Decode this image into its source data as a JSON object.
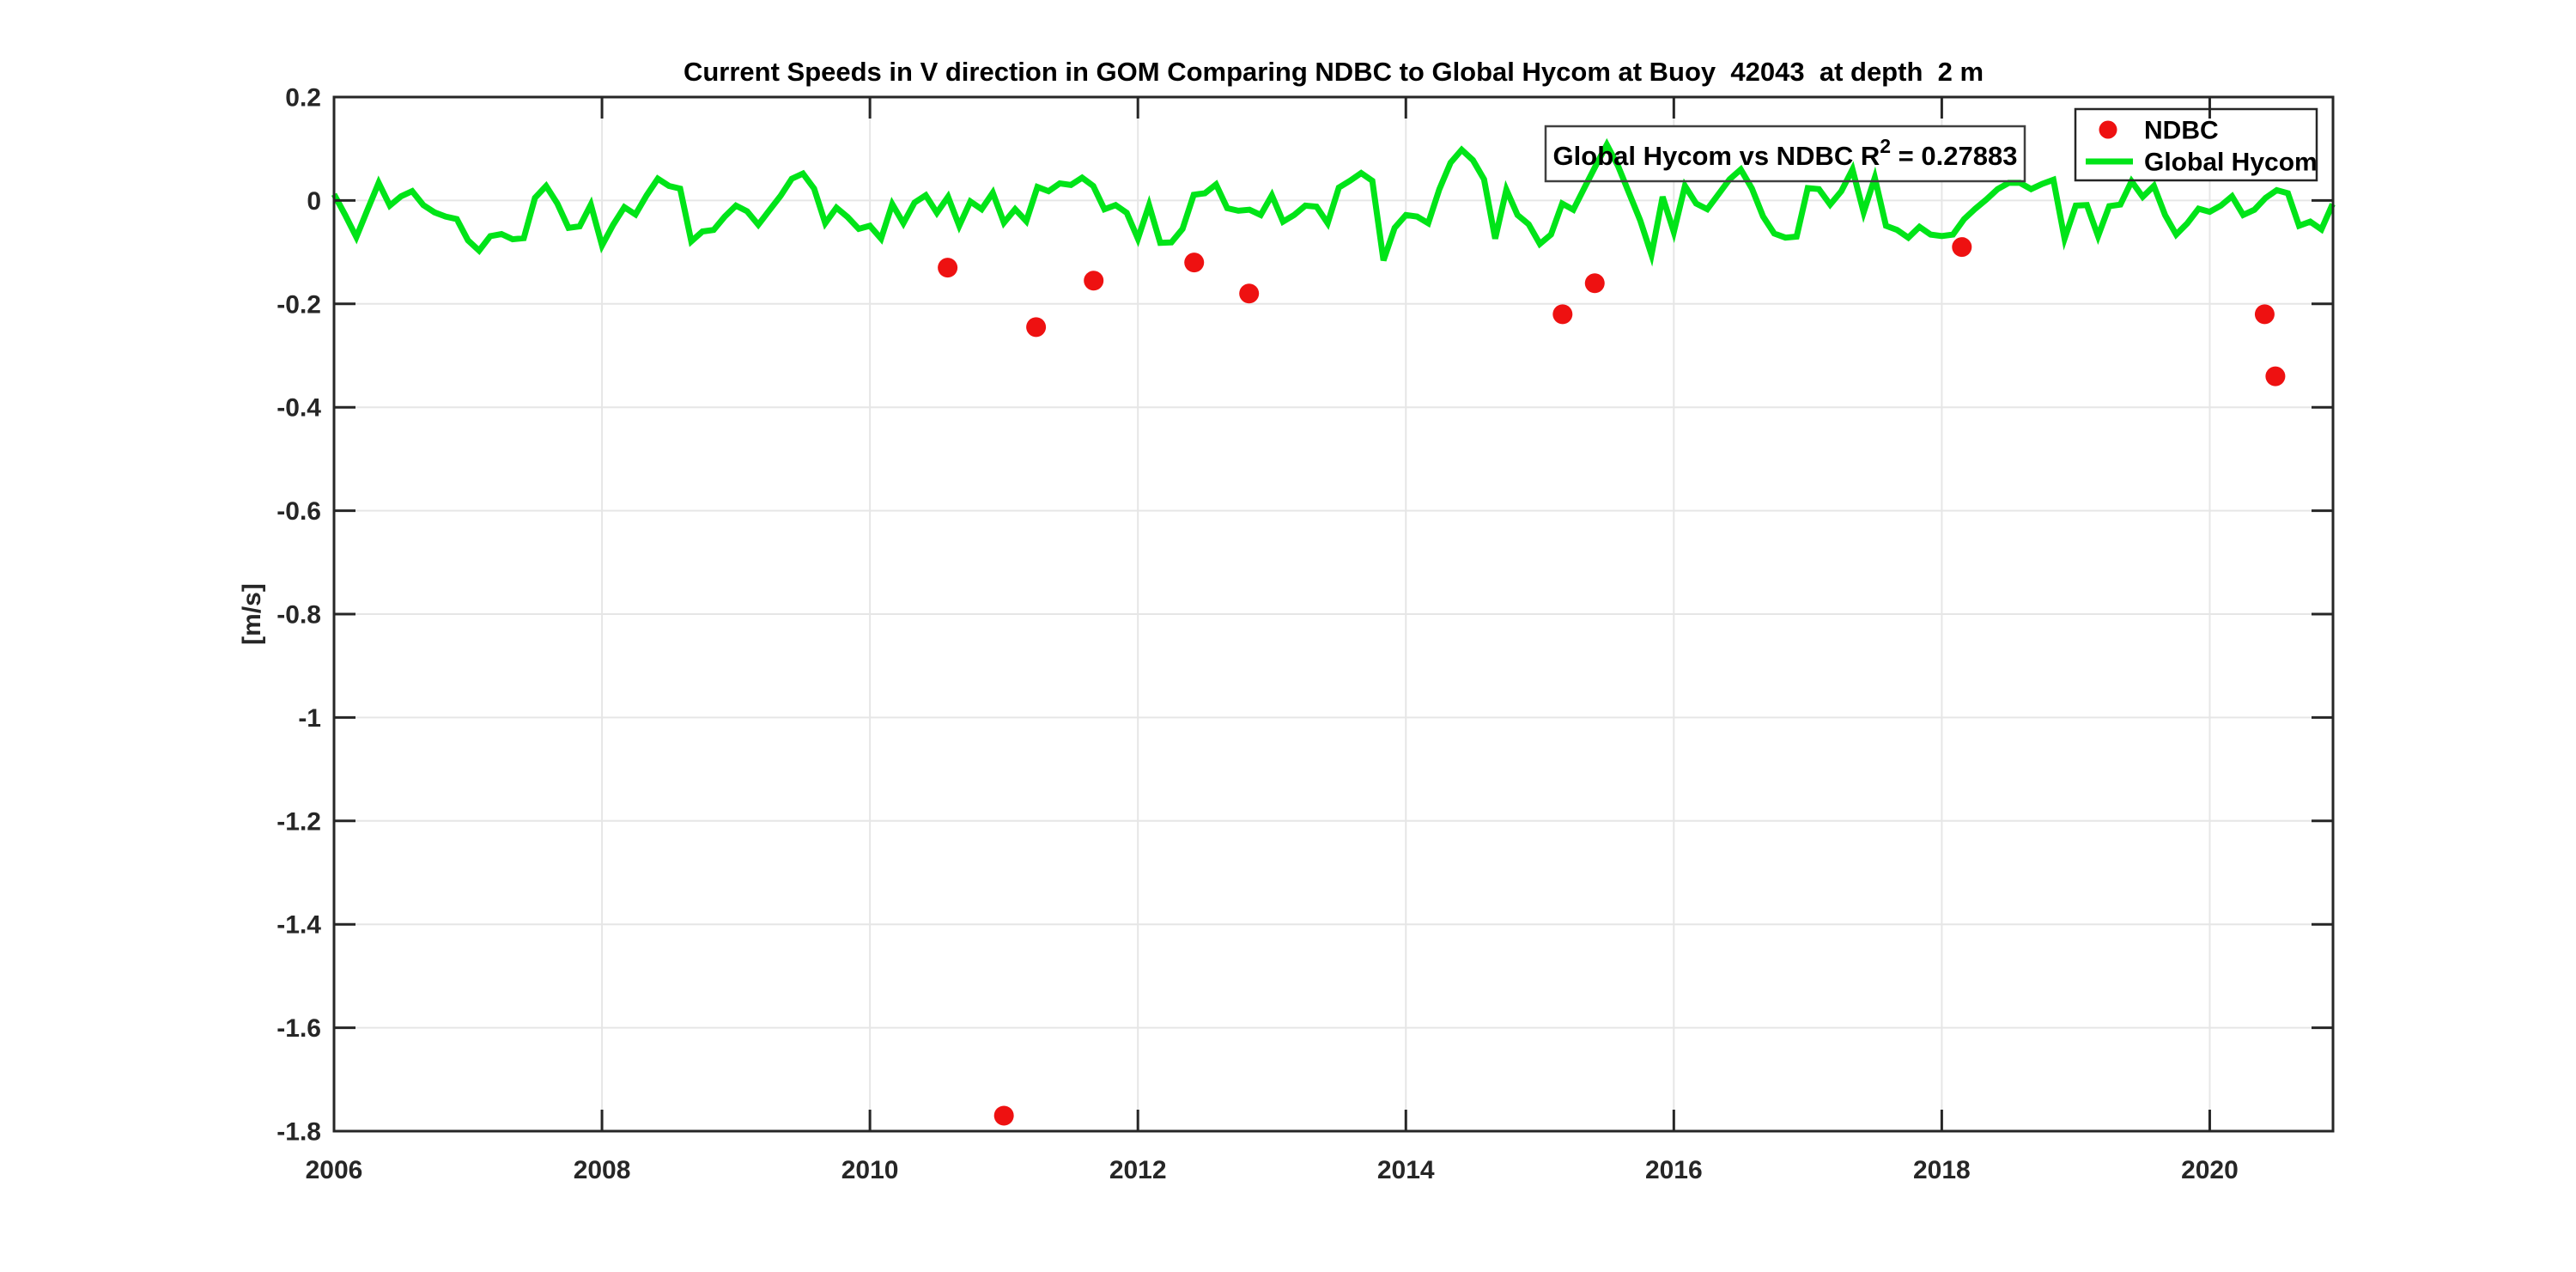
{
  "figure": {
    "title": "Current Speeds in V direction in GOM Comparing NDBC to Global Hycom at Buoy  42043  at depth  2 m",
    "ylabel": "[m/s]",
    "annotation_box": {
      "prefix": "Global Hycom vs NDBC R",
      "sup": "2",
      "suffix": " = 0.27883"
    },
    "legend": {
      "position": "top-right",
      "items": [
        {
          "label": "NDBC",
          "marker": "dot",
          "color": "#ee1111"
        },
        {
          "label": "Global Hycom",
          "marker": "line",
          "color": "#00e418"
        }
      ]
    },
    "colors": {
      "ndbc_red": "#ee1111",
      "hycom_green": "#00e418",
      "grid": "#e6e6e6",
      "axis": "#262626",
      "title_text": "#000000",
      "background": "#ffffff",
      "box_border": "#404040"
    }
  },
  "chart_data": {
    "type": "line+scatter",
    "title": "Current Speeds in V direction in GOM Comparing NDBC to Global Hycom at Buoy  42043  at depth  2 m",
    "xlabel": "",
    "ylabel": "[m/s]",
    "x_unit": "decimal_year",
    "xlim": [
      2006,
      2020.92
    ],
    "ylim": [
      -1.8,
      0.2
    ],
    "xticks": [
      2006,
      2008,
      2010,
      2012,
      2014,
      2016,
      2018,
      2020
    ],
    "xtick_labels": [
      "2006",
      "2008",
      "2010",
      "2012",
      "2014",
      "2016",
      "2018",
      "2020"
    ],
    "yticks": [
      0.2,
      0,
      -0.2,
      -0.4,
      -0.6,
      -0.8,
      -1,
      -1.2,
      -1.4,
      -1.6,
      -1.8
    ],
    "ytick_labels": [
      "0.2",
      "0",
      "-0.2",
      "-0.4",
      "-0.6",
      "-0.8",
      "-1",
      "-1.2",
      "-1.4",
      "-1.6",
      "-1.8"
    ],
    "grid": true,
    "legend_position": "top-right",
    "annotation": "Global Hycom vs NDBC R^2 = 0.27883",
    "r_squared": 0.27883,
    "series": [
      {
        "name": "NDBC",
        "type": "scatter",
        "color": "#ee1111",
        "x": [
          2010.58,
          2011.0,
          2011.24,
          2011.67,
          2012.42,
          2012.83,
          2015.17,
          2015.41,
          2018.15,
          2020.41,
          2020.49
        ],
        "y": [
          -0.13,
          -1.77,
          -0.245,
          -0.155,
          -0.12,
          -0.18,
          -0.22,
          -0.16,
          -0.09,
          -0.22,
          -0.34
        ]
      },
      {
        "name": "Global Hycom",
        "type": "line",
        "color": "#00e418",
        "x_start": 2006.0,
        "x_step": 0.083333,
        "values": [
          0.012,
          -0.028,
          -0.071,
          -0.018,
          0.034,
          -0.01,
          0.008,
          0.018,
          -0.009,
          -0.023,
          -0.031,
          -0.036,
          -0.077,
          -0.097,
          -0.069,
          -0.065,
          -0.075,
          -0.073,
          0.005,
          0.028,
          -0.006,
          -0.053,
          -0.05,
          -0.008,
          -0.087,
          -0.047,
          -0.013,
          -0.027,
          0.01,
          0.042,
          0.028,
          0.023,
          -0.079,
          -0.06,
          -0.057,
          -0.031,
          -0.01,
          -0.021,
          -0.047,
          -0.019,
          0.009,
          0.042,
          0.052,
          0.023,
          -0.044,
          -0.014,
          -0.032,
          -0.055,
          -0.049,
          -0.074,
          -0.007,
          -0.044,
          -0.004,
          0.01,
          -0.024,
          0.007,
          -0.049,
          -0.002,
          -0.017,
          0.015,
          -0.043,
          -0.017,
          -0.04,
          0.026,
          0.018,
          0.033,
          0.03,
          0.044,
          0.028,
          -0.017,
          -0.009,
          -0.024,
          -0.074,
          -0.009,
          -0.082,
          -0.081,
          -0.055,
          0.011,
          0.014,
          0.031,
          -0.015,
          -0.02,
          -0.018,
          -0.028,
          0.01,
          -0.041,
          -0.028,
          -0.01,
          -0.012,
          -0.044,
          0.025,
          0.038,
          0.053,
          0.038,
          -0.116,
          -0.053,
          -0.028,
          -0.031,
          -0.044,
          0.022,
          0.073,
          0.098,
          0.078,
          0.041,
          -0.074,
          0.021,
          -0.028,
          -0.046,
          -0.084,
          -0.066,
          -0.006,
          -0.018,
          0.025,
          0.067,
          0.108,
          0.067,
          0.014,
          -0.039,
          -0.105,
          0.007,
          -0.061,
          0.028,
          -0.006,
          -0.017,
          0.012,
          0.041,
          0.06,
          0.023,
          -0.031,
          -0.064,
          -0.072,
          -0.07,
          0.024,
          0.022,
          -0.008,
          0.018,
          0.06,
          -0.023,
          0.044,
          -0.049,
          -0.057,
          -0.072,
          -0.051,
          -0.066,
          -0.069,
          -0.066,
          -0.036,
          -0.016,
          0.002,
          0.022,
          0.034,
          0.034,
          0.022,
          0.032,
          0.04,
          -0.074,
          -0.01,
          -0.009,
          -0.069,
          -0.011,
          -0.008,
          0.037,
          0.007,
          0.028,
          -0.028,
          -0.066,
          -0.044,
          -0.016,
          -0.022,
          -0.01,
          0.008,
          -0.028,
          -0.018,
          0.005,
          0.02,
          0.014,
          -0.049,
          -0.041,
          -0.056,
          -0.007
        ]
      }
    ]
  }
}
